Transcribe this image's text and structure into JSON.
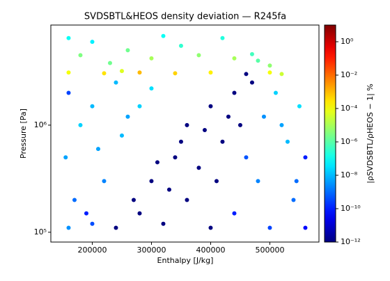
{
  "chart_data": {
    "type": "scatter",
    "title": "SVDSBTL&HEOS density deviation — R245fa",
    "xlabel": "Enthalpy [J/kg]",
    "ylabel": "Pressure [Pa]",
    "colorbar_label": "|ρSVDSBTL/ρHEOS − 1| %",
    "colormap": "jet",
    "yscale": "log",
    "cscale": "log",
    "xlim": [
      130000,
      583000
    ],
    "ylim": [
      81000,
      8600000
    ],
    "clim": [
      1e-12,
      10
    ],
    "xticks": [
      200000,
      300000,
      400000,
      500000
    ],
    "yticks": [
      {
        "value": 100000,
        "label": "10⁵"
      },
      {
        "value": 1000000,
        "label": "10⁶"
      }
    ],
    "cticks": [
      {
        "value": 1e-12,
        "label": "10⁻¹²"
      },
      {
        "value": 1e-10,
        "label": "10⁻¹⁰"
      },
      {
        "value": 1e-08,
        "label": "10⁻⁸"
      },
      {
        "value": 1e-06,
        "label": "10⁻⁶"
      },
      {
        "value": 0.0001,
        "label": "10⁻⁴"
      },
      {
        "value": 0.01,
        "label": "10⁻²"
      },
      {
        "value": 1,
        "label": "10⁰"
      }
    ],
    "x": [
      240000,
      280000,
      320000,
      360000,
      400000,
      300000,
      340000,
      380000,
      420000,
      360000,
      400000,
      440000,
      460000,
      330000,
      270000,
      410000,
      390000,
      430000,
      470000,
      350000,
      310000,
      450000,
      160000,
      170000,
      155000,
      180000,
      200000,
      160000,
      220000,
      250000,
      190000,
      210000,
      280000,
      300000,
      240000,
      200000,
      260000,
      160000,
      220000,
      280000,
      340000,
      400000,
      500000,
      520000,
      250000,
      160000,
      200000,
      260000,
      320000,
      380000,
      420000,
      440000,
      180000,
      300000,
      480000,
      500000,
      350000,
      230000,
      470000,
      500000,
      540000,
      560000,
      520000,
      550000,
      480000,
      530000,
      440000,
      460000,
      560000,
      510000,
      490000,
      545000
    ],
    "y": [
      110000,
      150000,
      120000,
      200000,
      110000,
      300000,
      500000,
      400000,
      700000,
      1000000,
      1500000,
      2000000,
      3000000,
      250000,
      200000,
      300000,
      900000,
      1200000,
      2500000,
      700000,
      450000,
      1000000,
      110000,
      200000,
      500000,
      1000000,
      1500000,
      2000000,
      300000,
      800000,
      150000,
      600000,
      1500000,
      2200000,
      2500000,
      120000,
      1200000,
      3100000,
      3050000,
      3100000,
      3050000,
      3100000,
      3100000,
      3000000,
      3200000,
      6500000,
      6000000,
      5000000,
      6800000,
      4500000,
      6500000,
      4200000,
      4500000,
      4200000,
      4000000,
      3600000,
      5500000,
      3800000,
      4600000,
      110000,
      200000,
      500000,
      1000000,
      1500000,
      300000,
      700000,
      150000,
      500000,
      110000,
      2000000,
      1200000,
      300000
    ],
    "c": [
      1e-12,
      1e-12,
      1e-12,
      1e-12,
      1e-12,
      1e-12,
      1e-12,
      1e-12,
      1e-12,
      1e-12,
      1e-12,
      1e-12,
      1e-12,
      1e-12,
      1e-12,
      1e-12,
      1e-12,
      1e-12,
      1e-12,
      1e-12,
      1e-12,
      1e-12,
      3e-09,
      1e-09,
      5e-09,
      2e-08,
      1e-08,
      3e-10,
      2e-09,
      1e-08,
      1e-10,
      5e-09,
      2e-08,
      3e-08,
      1e-08,
      4e-10,
      5e-09,
      0.0001,
      0.0003,
      0.001,
      0.0005,
      0.0002,
      0.0001,
      3e-05,
      5e-05,
      1e-07,
      5e-08,
      2e-06,
      1e-07,
      5e-06,
      2e-07,
      1e-05,
      3e-06,
      1e-05,
      1e-06,
      5e-06,
      3e-07,
      2e-06,
      5e-07,
      3e-10,
      1e-09,
      1e-10,
      5e-09,
      3e-08,
      2e-09,
      1e-08,
      1e-10,
      5e-10,
      5e-11,
      2e-08,
      3e-09,
      1e-09
    ]
  }
}
